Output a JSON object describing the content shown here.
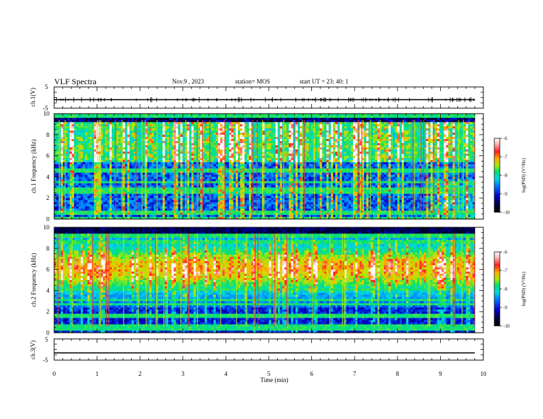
{
  "header": {
    "title": "VLF Spectra",
    "date": "Nov.9 , 2023",
    "station": "station= MOS",
    "start": "start UT = 23: 40: 1"
  },
  "chart_data": [
    {
      "type": "line",
      "panel": "ch1-waveform",
      "ylabel": "ch.1(V)",
      "ylim": [
        -5,
        5
      ],
      "yticks": [
        "5",
        "-5"
      ],
      "xlim": [
        0,
        10
      ],
      "series": [
        {
          "values": [
            [
              0,
              -1
            ],
            [
              9.8,
              -1
            ]
          ]
        }
      ]
    },
    {
      "type": "heatmap",
      "panel": "ch1-spectrogram",
      "ylabel": "ch.1 Frequency (kHz)",
      "ylim": [
        0,
        10
      ],
      "yticks": [
        "0",
        "2",
        "4",
        "6",
        "8",
        "10"
      ],
      "xlim": [
        0,
        10
      ],
      "colorbar": {
        "label": "log(PSD) (V²/Hz)",
        "ticks": [
          "-6",
          "-7",
          "-8",
          "-9",
          "-10"
        ],
        "range": [
          -10,
          -6
        ]
      }
    },
    {
      "type": "heatmap",
      "panel": "ch2-spectrogram",
      "ylabel": "ch.2 Frequency (kHz)",
      "ylim": [
        0,
        10
      ],
      "yticks": [
        "0",
        "2",
        "4",
        "6",
        "8",
        "10"
      ],
      "xlim": [
        0,
        10
      ],
      "colorbar": {
        "label": "log(PSD) (V²/Hz)",
        "ticks": [
          "-6",
          "-7",
          "-8",
          "-9",
          "-10"
        ],
        "range": [
          -10,
          -6
        ]
      }
    },
    {
      "type": "line",
      "panel": "ch3-waveform",
      "ylabel": "ch.3(V)",
      "ylim": [
        -5,
        5
      ],
      "yticks": [
        "5",
        "-5"
      ],
      "xlim": [
        0,
        10
      ],
      "xlabel": "Time (min)",
      "xticks": [
        "0",
        "1",
        "2",
        "3",
        "4",
        "5",
        "6",
        "7",
        "8",
        "9",
        "10"
      ],
      "series": [
        {
          "values": [
            [
              0,
              -1.6
            ],
            [
              9.8,
              -1.6
            ]
          ]
        }
      ]
    }
  ],
  "colors": {
    "axis": "#000000",
    "scale": [
      "#000000",
      "#00003c",
      "#0000c8",
      "#0080ff",
      "#00d8e8",
      "#00e070",
      "#b8ea00",
      "#ffb000",
      "#ff2020",
      "#ffd0d0",
      "#ffffff"
    ]
  }
}
